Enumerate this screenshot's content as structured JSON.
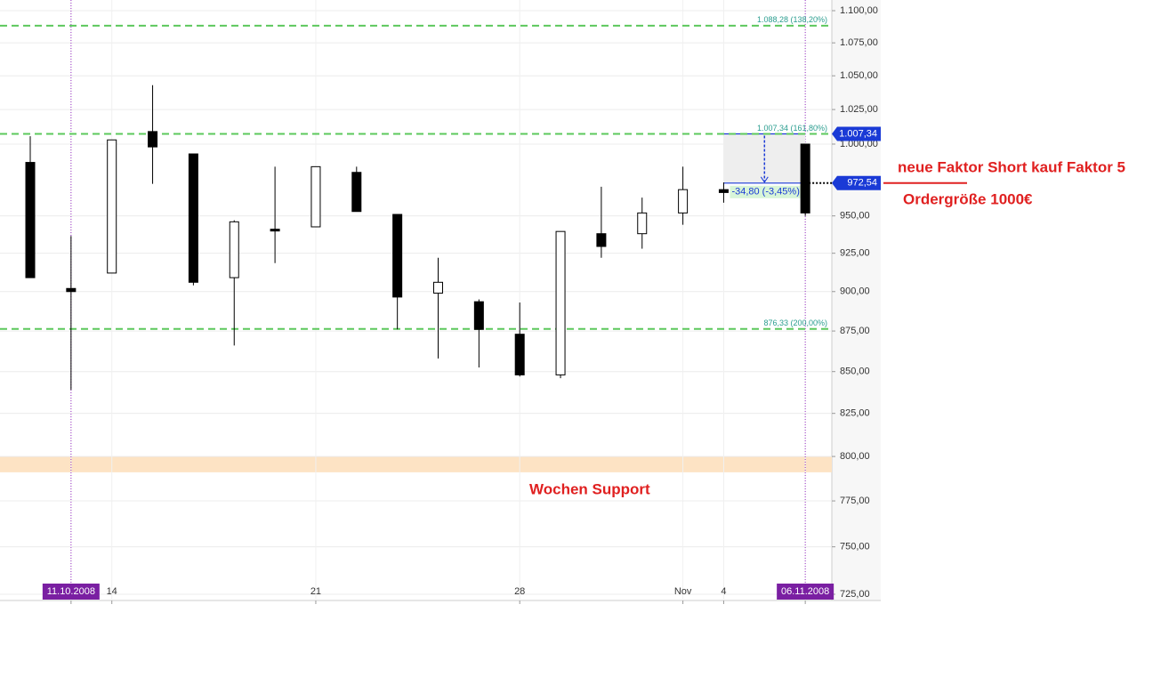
{
  "chart_data": {
    "type": "candlestick",
    "log_scale": true,
    "grid": true,
    "categories": [
      null,
      "11.10.2008",
      "14",
      null,
      null,
      null,
      null,
      "21",
      null,
      null,
      null,
      null,
      "28",
      null,
      null,
      null,
      "Nov",
      "4",
      null,
      "06.11.2008"
    ],
    "open": [
      987,
      902,
      912,
      1009,
      993,
      909,
      941,
      942.6,
      980,
      951,
      899,
      893.5,
      873,
      848,
      938,
      938,
      952,
      968,
      null,
      1000
    ],
    "high": [
      1005.6,
      936.5,
      1003,
      1043,
      993,
      947,
      984,
      984,
      984,
      951,
      922,
      895,
      893,
      939.5,
      970,
      962.5,
      984,
      973,
      null,
      1000
    ],
    "low": [
      909,
      839,
      912,
      972,
      904,
      866,
      918.5,
      942.6,
      953,
      876,
      858,
      852.5,
      847,
      846,
      922,
      928,
      944,
      959,
      null,
      950
    ],
    "close": [
      909,
      900,
      1003,
      998,
      906,
      946,
      940,
      984,
      953,
      896.5,
      906,
      876,
      848,
      939.5,
      929.5,
      952,
      968,
      966,
      null,
      952
    ],
    "up_color": "#ffffff",
    "down_color": "#000000",
    "ylim": [
      725,
      1100
    ],
    "yticks": [
      {
        "value": 1100,
        "label": "1.100,00"
      },
      {
        "value": 1075,
        "label": "1.075,00"
      },
      {
        "value": 1050,
        "label": "1.050,00"
      },
      {
        "value": 1025,
        "label": "1.025,00"
      },
      {
        "value": 1000,
        "label": "1.000,00"
      },
      {
        "value": 950,
        "label": "950,00"
      },
      {
        "value": 925,
        "label": "925,00"
      },
      {
        "value": 900,
        "label": "900,00"
      },
      {
        "value": 875,
        "label": "875,00"
      },
      {
        "value": 850,
        "label": "850,00"
      },
      {
        "value": 825,
        "label": "825,00"
      },
      {
        "value": 800,
        "label": "800,00"
      },
      {
        "value": 775,
        "label": "775,00"
      },
      {
        "value": 750,
        "label": "750,00"
      },
      {
        "value": 725,
        "label": "725,00"
      }
    ],
    "levels": [
      {
        "value": 1088.28,
        "label": "1.088,28 (138,20%)"
      },
      {
        "value": 1007.34,
        "label": "1.007,34 (161,80%)"
      },
      {
        "value": 876.33,
        "label": "876,33 (200,00%)"
      }
    ],
    "level_color": "#5cc85c",
    "price_tags": [
      {
        "value": 1007.34,
        "label": "1.007,34"
      },
      {
        "value": 972.54,
        "label": "972,54"
      }
    ],
    "measure": {
      "value": -34.8,
      "label": "-34,80 (-3,45%)"
    },
    "support_band": [
      791,
      800
    ],
    "support_label": "Wochen Support",
    "annotations": [
      "neue Faktor Short kauf Faktor 5",
      "Ordergröße 1000€"
    ]
  }
}
